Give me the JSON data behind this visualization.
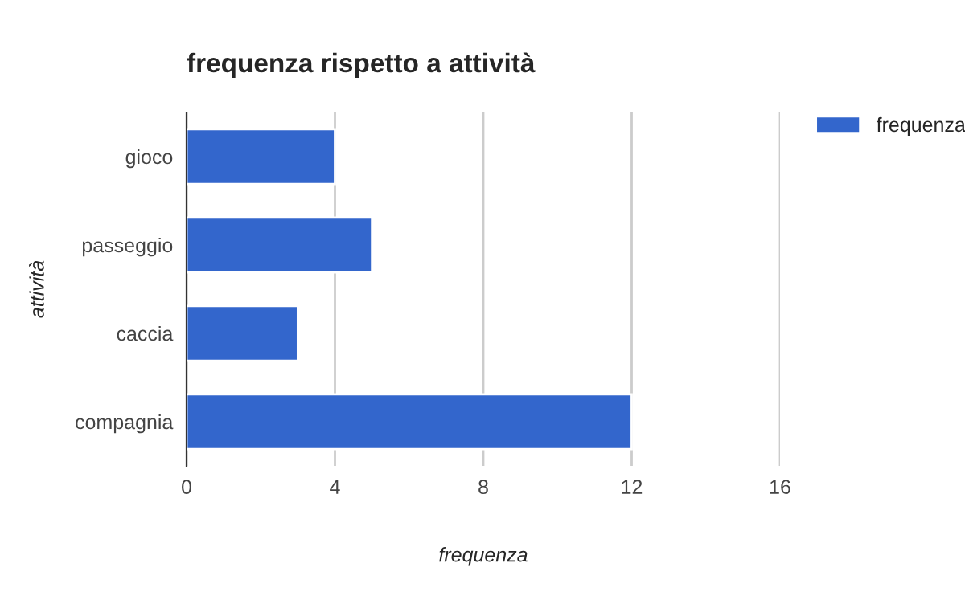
{
  "chart_data": {
    "type": "bar",
    "orientation": "horizontal",
    "title": "frequenza rispetto a attività",
    "xlabel": "frequenza",
    "ylabel": "attività",
    "categories": [
      "gioco",
      "passeggio",
      "caccia",
      "compagnia"
    ],
    "series": [
      {
        "name": "frequenza",
        "color": "#3366cc",
        "values": [
          4,
          5,
          3,
          12
        ]
      }
    ],
    "xlim": [
      0,
      16
    ],
    "xticks": [
      0,
      4,
      8,
      12,
      16
    ],
    "grid": "x",
    "legend": "top right"
  }
}
